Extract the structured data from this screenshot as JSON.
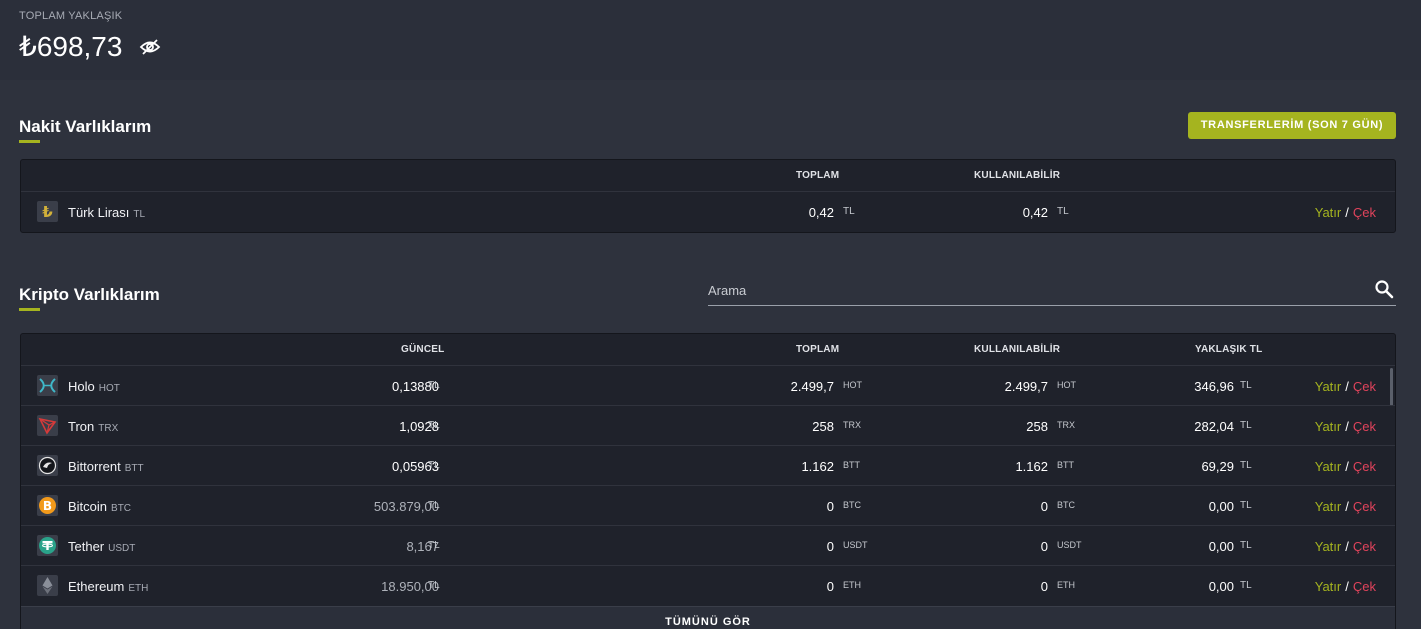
{
  "header": {
    "total_label": "TOPLAM YAKLAŞIK",
    "total_amount": "₺698,73"
  },
  "cash": {
    "title": "Nakit Varlıklarım",
    "transfer_button": "TRANSFERLERİM (SON 7 GÜN)",
    "columns": {
      "total": "TOPLAM",
      "available": "KULLANILABİLİR"
    },
    "rows": [
      {
        "name": "Türk Lirası",
        "symbol": "TL",
        "total": "0,42",
        "total_unit": "TL",
        "available": "0,42",
        "available_unit": "TL",
        "deposit": "Yatır",
        "sep": "/",
        "withdraw": "Çek"
      }
    ]
  },
  "crypto": {
    "title": "Kripto Varlıklarım",
    "search_placeholder": "Arama",
    "columns": {
      "current": "GÜNCEL",
      "total": "TOPLAM",
      "available": "KULLANILABİLİR",
      "approx": "YAKLAŞIK TL"
    },
    "rows": [
      {
        "icon": "holo-icon",
        "name": "Holo",
        "symbol": "HOT",
        "price": "0,13880",
        "price_unit": "TL",
        "total": "2.499,7",
        "total_unit": "HOT",
        "available": "2.499,7",
        "available_unit": "HOT",
        "approx": "346,96",
        "approx_unit": "TL",
        "deposit": "Yatır",
        "sep": "/",
        "withdraw": "Çek"
      },
      {
        "icon": "tron-icon",
        "name": "Tron",
        "symbol": "TRX",
        "price": "1,0928",
        "price_unit": "TL",
        "total": "258",
        "total_unit": "TRX",
        "available": "258",
        "available_unit": "TRX",
        "approx": "282,04",
        "approx_unit": "TL",
        "deposit": "Yatır",
        "sep": "/",
        "withdraw": "Çek"
      },
      {
        "icon": "bittorrent-icon",
        "name": "Bittorrent",
        "symbol": "BTT",
        "price": "0,05963",
        "price_unit": "TL",
        "total": "1.162",
        "total_unit": "BTT",
        "available": "1.162",
        "available_unit": "BTT",
        "approx": "69,29",
        "approx_unit": "TL",
        "deposit": "Yatır",
        "sep": "/",
        "withdraw": "Çek"
      },
      {
        "icon": "bitcoin-icon",
        "name": "Bitcoin",
        "symbol": "BTC",
        "price": "503.879,00",
        "price_unit": "TL",
        "total": "0",
        "total_unit": "BTC",
        "available": "0",
        "available_unit": "BTC",
        "approx": "0,00",
        "approx_unit": "TL",
        "deposit": "Yatır",
        "sep": "/",
        "withdraw": "Çek"
      },
      {
        "icon": "tether-icon",
        "name": "Tether",
        "symbol": "USDT",
        "price": "8,167",
        "price_unit": "TL",
        "total": "0",
        "total_unit": "USDT",
        "available": "0",
        "available_unit": "USDT",
        "approx": "0,00",
        "approx_unit": "TL",
        "deposit": "Yatır",
        "sep": "/",
        "withdraw": "Çek"
      },
      {
        "icon": "ethereum-icon",
        "name": "Ethereum",
        "symbol": "ETH",
        "price": "18.950,00",
        "price_unit": "TL",
        "total": "0",
        "total_unit": "ETH",
        "available": "0",
        "available_unit": "ETH",
        "approx": "0,00",
        "approx_unit": "TL",
        "deposit": "Yatır",
        "sep": "/",
        "withdraw": "Çek"
      }
    ],
    "see_all": "TÜMÜNÜ GÖR"
  },
  "colors": {
    "accent": "#a5b41f",
    "withdraw": "#e0435b",
    "panel": "#1f222b",
    "background": "#2e323d"
  }
}
